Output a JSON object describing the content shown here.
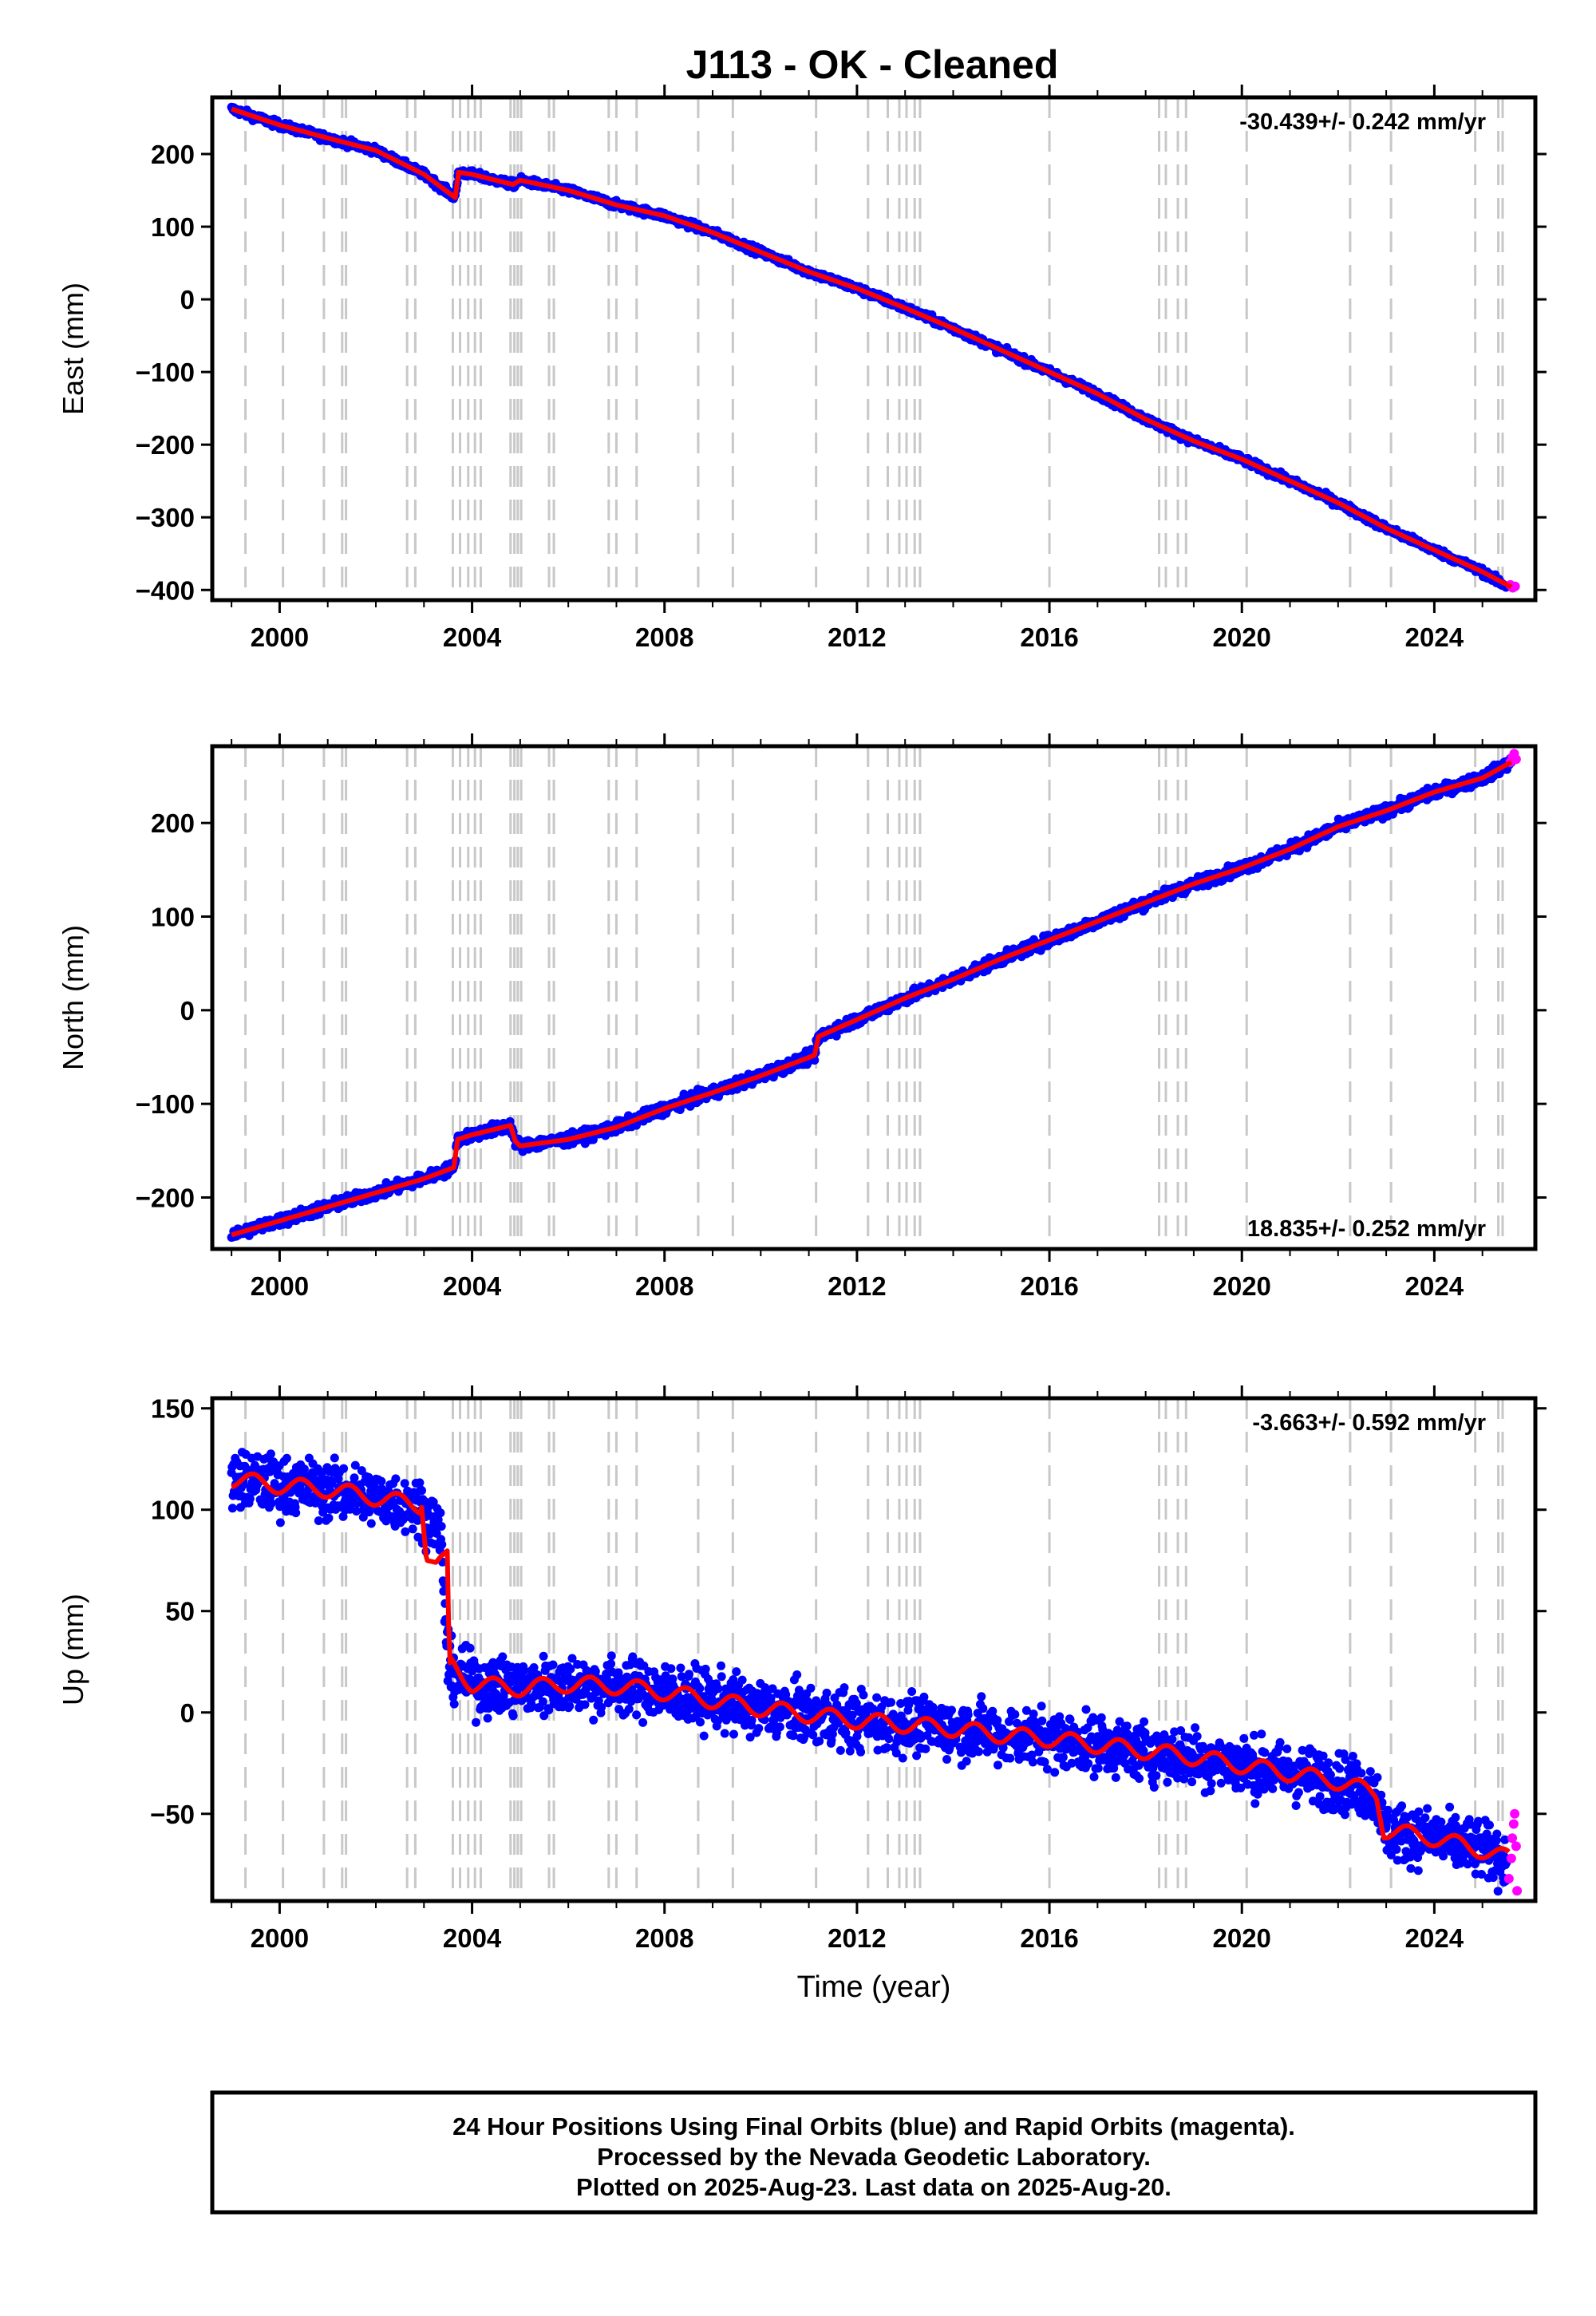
{
  "title": "J113  - OK - Cleaned",
  "footer": {
    "lines": [
      "24 Hour Positions Using Final Orbits (blue) and Rapid Orbits (magenta).",
      "Processed by the Nevada Geodetic Laboratory.",
      "Plotted on 2025-Aug-23. Last data on 2025-Aug-20."
    ]
  },
  "colors": {
    "final_orbits": "#0000ff",
    "rapid_orbits": "#ff00ff",
    "model": "#ff0000",
    "event_lines": "#c8c8c8",
    "frame": "#000000"
  },
  "chart_data": [
    {
      "name": "east",
      "type": "scatter",
      "ylabel": "East (mm)",
      "xlabel": "",
      "xlim": [
        1998.6,
        2026.1
      ],
      "ylim": [
        -414,
        278
      ],
      "yticks": [
        200,
        100,
        0,
        -100,
        -200,
        -300,
        -400
      ],
      "ytick_labels": [
        "200",
        "100",
        "0",
        "−100",
        "−200",
        "−300",
        "−400"
      ],
      "xticks": [
        2000,
        2004,
        2008,
        2012,
        2016,
        2020,
        2024
      ],
      "rate_text": "-30.439+/- 0.242 mm/yr",
      "rate_position": "top-right",
      "grid": false,
      "scatter_noise": 2.5,
      "series": [
        {
          "name": "Final Orbits",
          "color": "#0000ff",
          "x": [
            1999.0,
            2000.0,
            2001.0,
            2002.0,
            2003.0,
            2003.65,
            2003.72,
            2004.0,
            2004.85,
            2005.0,
            2006.0,
            2007.0,
            2008.0,
            2009.0,
            2010.0,
            2011.0,
            2012.0,
            2013.0,
            2014.0,
            2015.0,
            2016.0,
            2017.0,
            2018.0,
            2019.0,
            2020.0,
            2021.0,
            2022.0,
            2023.0,
            2024.0,
            2025.0,
            2025.5
          ],
          "y": [
            262,
            240,
            222,
            205,
            172,
            140,
            175,
            172,
            158,
            164,
            150,
            130,
            115,
            92,
            65,
            38,
            15,
            -12,
            -40,
            -70,
            -100,
            -130,
            -165,
            -195,
            -220,
            -250,
            -280,
            -315,
            -345,
            -375,
            -395
          ]
        },
        {
          "name": "Rapid Orbits",
          "color": "#ff00ff",
          "x": [
            2025.58,
            2025.63,
            2025.68
          ],
          "y": [
            -393,
            -397,
            -395
          ]
        }
      ],
      "model": {
        "x": [
          1999.0,
          2000.0,
          2001.0,
          2002.0,
          2003.0,
          2003.65,
          2003.72,
          2004.0,
          2004.85,
          2005.0,
          2006.0,
          2007.0,
          2008.0,
          2009.0,
          2010.0,
          2011.0,
          2012.0,
          2013.0,
          2014.0,
          2015.0,
          2016.0,
          2017.0,
          2018.0,
          2019.0,
          2020.0,
          2021.0,
          2022.0,
          2023.0,
          2024.0,
          2025.0,
          2025.6
        ],
        "y": [
          262,
          240,
          222,
          205,
          172,
          140,
          175,
          172,
          158,
          164,
          150,
          130,
          115,
          92,
          65,
          38,
          15,
          -12,
          -40,
          -70,
          -100,
          -130,
          -165,
          -195,
          -220,
          -250,
          -280,
          -315,
          -345,
          -375,
          -396
        ]
      }
    },
    {
      "name": "north",
      "type": "scatter",
      "ylabel": "North (mm)",
      "xlabel": "",
      "xlim": [
        1998.6,
        2026.1
      ],
      "ylim": [
        -255,
        282
      ],
      "yticks": [
        200,
        100,
        0,
        -100,
        -200
      ],
      "ytick_labels": [
        "200",
        "100",
        "0",
        "−100",
        "−200"
      ],
      "xticks": [
        2000,
        2004,
        2008,
        2012,
        2016,
        2020,
        2024
      ],
      "rate_text": "18.835+/- 0.252 mm/yr",
      "rate_position": "bottom-right",
      "grid": false,
      "scatter_noise": 3,
      "series": [
        {
          "name": "Final Orbits",
          "color": "#0000ff",
          "x": [
            1999.0,
            2000.0,
            2001.0,
            2002.0,
            2003.0,
            2003.62,
            2003.7,
            2004.0,
            2004.8,
            2004.9,
            2005.0,
            2006.0,
            2007.0,
            2008.0,
            2009.0,
            2010.0,
            2011.12,
            2011.2,
            2012.0,
            2013.0,
            2014.0,
            2015.0,
            2016.0,
            2017.0,
            2018.0,
            2019.0,
            2020.0,
            2021.0,
            2022.0,
            2023.0,
            2024.0,
            2025.0,
            2025.6
          ],
          "y": [
            -240,
            -225,
            -210,
            -195,
            -180,
            -168,
            -138,
            -133,
            -123,
            -140,
            -145,
            -138,
            -125,
            -105,
            -88,
            -70,
            -48,
            -28,
            -10,
            13,
            33,
            55,
            75,
            95,
            115,
            135,
            152,
            172,
            196,
            213,
            233,
            248,
            265
          ]
        },
        {
          "name": "Rapid Orbits",
          "color": "#ff00ff",
          "x": [
            2025.58,
            2025.62,
            2025.66,
            2025.7
          ],
          "y": [
            265,
            270,
            274,
            268
          ]
        }
      ],
      "model": {
        "x": [
          1999.0,
          2000.0,
          2001.0,
          2002.0,
          2003.0,
          2003.62,
          2003.7,
          2004.0,
          2004.8,
          2004.9,
          2005.0,
          2006.0,
          2007.0,
          2008.0,
          2009.0,
          2010.0,
          2011.12,
          2011.2,
          2012.0,
          2013.0,
          2014.0,
          2015.0,
          2016.0,
          2017.0,
          2018.0,
          2019.0,
          2020.0,
          2021.0,
          2022.0,
          2023.0,
          2024.0,
          2025.0,
          2025.6
        ],
        "y": [
          -240,
          -225,
          -210,
          -195,
          -180,
          -168,
          -138,
          -133,
          -123,
          -140,
          -145,
          -138,
          -125,
          -105,
          -88,
          -70,
          -48,
          -28,
          -10,
          13,
          33,
          55,
          75,
          95,
          115,
          135,
          152,
          172,
          196,
          213,
          233,
          248,
          265
        ]
      }
    },
    {
      "name": "up",
      "type": "scatter",
      "ylabel": "Up (mm)",
      "xlabel": "Time (year)",
      "xlim": [
        1998.6,
        2026.1
      ],
      "ylim": [
        -93,
        155
      ],
      "yticks": [
        150,
        100,
        50,
        0,
        -50
      ],
      "ytick_labels": [
        "150",
        "100",
        "50",
        "0",
        "−50"
      ],
      "xticks": [
        2000,
        2004,
        2008,
        2012,
        2016,
        2020,
        2024
      ],
      "rate_text": "-3.663+/- 0.592 mm/yr",
      "rate_position": "top-right",
      "grid": false,
      "scatter_noise": 7,
      "series": [
        {
          "name": "Final Orbits",
          "color": "#0000ff",
          "x": [
            1999.0,
            2000.0,
            2001.0,
            2002.0,
            2002.9,
            2003.35,
            2003.5,
            2004.0,
            2005.0,
            2006.0,
            2007.0,
            2008.0,
            2009.0,
            2010.0,
            2011.0,
            2012.0,
            2013.0,
            2014.0,
            2015.0,
            2016.0,
            2017.0,
            2018.0,
            2019.0,
            2020.0,
            2021.0,
            2022.0,
            2022.8,
            2022.95,
            2024.0,
            2025.0,
            2025.5
          ],
          "y": [
            115,
            112,
            110,
            106,
            102,
            90,
            22,
            14,
            12,
            14,
            13,
            10,
            6,
            2,
            -1,
            -4,
            -6,
            -8,
            -11,
            -13,
            -16,
            -19,
            -22,
            -26,
            -30,
            -34,
            -40,
            -58,
            -62,
            -68,
            -72
          ]
        },
        {
          "name": "Rapid Orbits",
          "color": "#ff00ff",
          "x": [
            2025.55,
            2025.6,
            2025.62,
            2025.65,
            2025.67,
            2025.7,
            2025.72
          ],
          "y": [
            -82,
            -72,
            -62,
            -55,
            -50,
            -66,
            -88
          ]
        }
      ],
      "model": {
        "x": [
          1999.0,
          2000.0,
          2001.0,
          2002.0,
          2002.95,
          2003.05,
          2003.25,
          2003.35,
          2003.5,
          2003.52,
          2004.0,
          2005.0,
          2006.0,
          2007.0,
          2008.0,
          2009.0,
          2010.0,
          2011.0,
          2012.0,
          2013.0,
          2014.0,
          2015.0,
          2016.0,
          2017.0,
          2018.0,
          2019.0,
          2020.0,
          2021.0,
          2022.0,
          2022.8,
          2022.95,
          2024.0,
          2025.0,
          2025.55
        ],
        "y": [
          115,
          112,
          110,
          106,
          102,
          75,
          74,
          77,
          80,
          25,
          14,
          12,
          14,
          13,
          10,
          6,
          2,
          -1,
          -4,
          -6,
          -8,
          -11,
          -13,
          -16,
          -19,
          -22,
          -26,
          -30,
          -34,
          -40,
          -58,
          -62,
          -68,
          -72
        ]
      }
    }
  ],
  "event_lines_years": [
    1999.29,
    2000.07,
    2000.92,
    2001.3,
    2001.38,
    2002.65,
    2002.82,
    2003.6,
    2003.75,
    2003.92,
    2004.06,
    2004.18,
    2004.8,
    2004.88,
    2004.95,
    2005.02,
    2005.6,
    2005.7,
    2006.84,
    2007.0,
    2007.42,
    2008.7,
    2009.42,
    2011.15,
    2012.23,
    2012.64,
    2012.88,
    2013.03,
    2013.2,
    2013.31,
    2016.0,
    2018.28,
    2018.42,
    2018.67,
    2018.84,
    2020.1,
    2022.25,
    2023.1,
    2024.85,
    2025.33,
    2025.42
  ]
}
